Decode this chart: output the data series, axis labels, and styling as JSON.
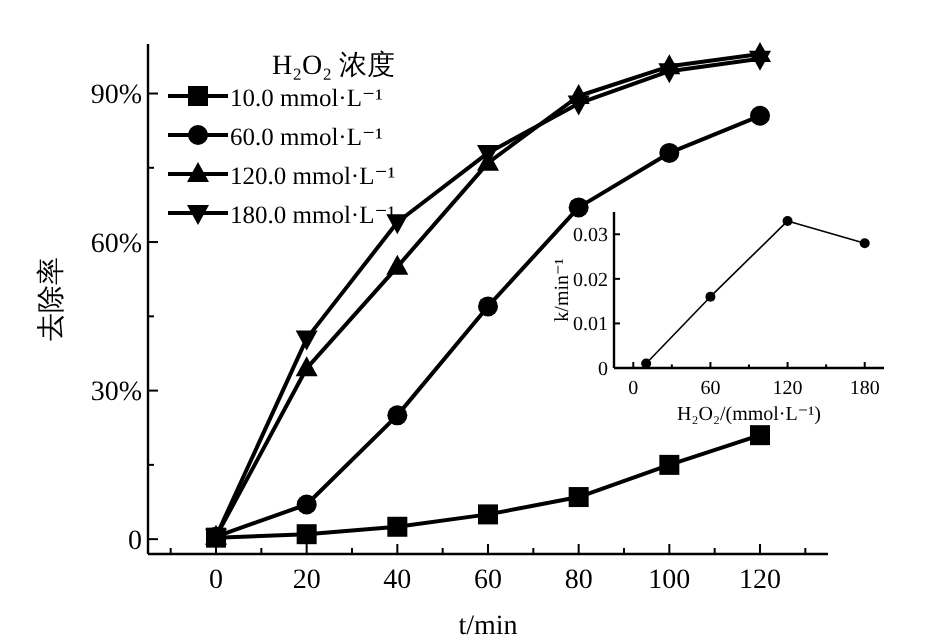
{
  "chart_data": [
    {
      "type": "line",
      "xlabel": "t/min",
      "ylabel": "去除率",
      "legend_title": "H₂O₂ 浓度",
      "legend": "top left",
      "x": [
        0,
        20,
        40,
        60,
        80,
        100,
        120
      ],
      "xlim": [
        -15,
        135
      ],
      "xticks": [
        {
          "value": -10,
          "label": null
        },
        0,
        {
          "value": 10,
          "label": null
        },
        20,
        {
          "value": 30,
          "label": null
        },
        40,
        {
          "value": 50,
          "label": null
        },
        60,
        {
          "value": 70,
          "label": null
        },
        80,
        {
          "value": 90,
          "label": null
        },
        100,
        {
          "value": 110,
          "label": null
        },
        120,
        {
          "value": 130,
          "label": null
        }
      ],
      "ylim": [
        -3,
        100
      ],
      "yticks": [
        {
          "value": 0,
          "label": "0"
        },
        {
          "value": 15,
          "label": null
        },
        {
          "value": 30,
          "label": "30%"
        },
        {
          "value": 45,
          "label": null
        },
        {
          "value": 60,
          "label": "60%"
        },
        {
          "value": 75,
          "label": null
        },
        {
          "value": 90,
          "label": "90%"
        }
      ],
      "series": [
        {
          "name": "10.0 mmol·L⁻¹",
          "color": "#000000",
          "marker": "square",
          "values": [
            0.3,
            1,
            2.5,
            5,
            8.5,
            15,
            21
          ]
        },
        {
          "name": "60.0 mmol·L⁻¹",
          "color": "#000000",
          "marker": "circle",
          "values": [
            0.5,
            7,
            25,
            47,
            67,
            78,
            85.5
          ]
        },
        {
          "name": "120.0 mmol·L⁻¹",
          "color": "#000000",
          "marker": "triangle",
          "values": [
            0.5,
            34.5,
            55,
            76,
            89.5,
            95.5,
            98
          ]
        },
        {
          "name": "180.0 mmol·L⁻¹",
          "color": "#000000",
          "marker": "triangle-down",
          "values": [
            0.5,
            40.5,
            64,
            78,
            88,
            94.5,
            97
          ]
        }
      ]
    },
    {
      "type": "line",
      "xlabel": "H₂O₂/(mmol·L⁻¹)",
      "ylabel": "k/min⁻¹",
      "x": [
        10,
        60,
        120,
        180
      ],
      "xlim": [
        -15,
        195
      ],
      "xticks": [
        0,
        {
          "value": 30,
          "label": null
        },
        60,
        {
          "value": 90,
          "label": null
        },
        120,
        {
          "value": 150,
          "label": null
        },
        180
      ],
      "ylim": [
        0,
        0.035
      ],
      "yticks": [
        0,
        0.01,
        0.02,
        0.03
      ],
      "series": [
        {
          "color": "#000000",
          "marker": "circle",
          "values": [
            0.001,
            0.016,
            0.033,
            0.028
          ]
        }
      ]
    }
  ]
}
